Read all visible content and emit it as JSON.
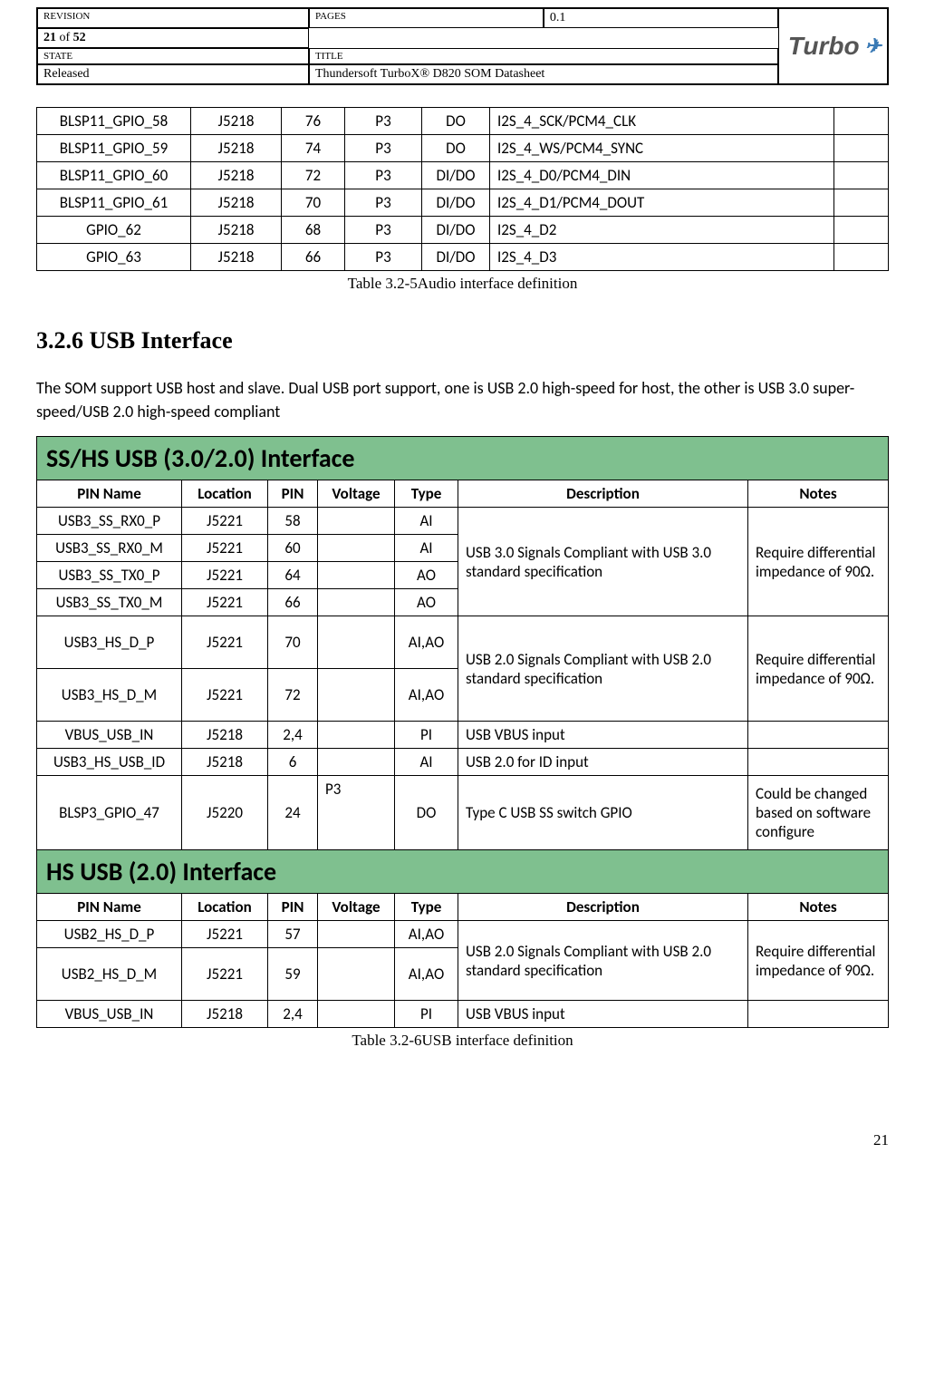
{
  "header": {
    "revision_label": "REVISION",
    "revision_value": "0.1",
    "pages_label": "PAGES",
    "pages_current": "21",
    "pages_sep": " of ",
    "pages_total": "52",
    "state_label": "STATE",
    "state_value": "Released",
    "title_label": "TITLE",
    "title_value": "Thundersoft TurboX® D820 SOM Datasheet",
    "logo_text": "Turbo",
    "logo_glyph": "✈"
  },
  "audio_table": {
    "rows": [
      {
        "name": "BLSP11_GPIO_58",
        "loc": "J5218",
        "pin": "76",
        "volt": "P3",
        "type": "DO",
        "desc": "I2S_4_SCK/PCM4_CLK",
        "notes": ""
      },
      {
        "name": "BLSP11_GPIO_59",
        "loc": "J5218",
        "pin": "74",
        "volt": "P3",
        "type": "DO",
        "desc": "I2S_4_WS/PCM4_SYNC",
        "notes": ""
      },
      {
        "name": "BLSP11_GPIO_60",
        "loc": "J5218",
        "pin": "72",
        "volt": "P3",
        "type": "DI/DO",
        "desc": "I2S_4_D0/PCM4_DIN",
        "notes": ""
      },
      {
        "name": "BLSP11_GPIO_61",
        "loc": "J5218",
        "pin": "70",
        "volt": "P3",
        "type": "DI/DO",
        "desc": "I2S_4_D1/PCM4_DOUT",
        "notes": ""
      },
      {
        "name": "GPIO_62",
        "loc": "J5218",
        "pin": "68",
        "volt": "P3",
        "type": "DI/DO",
        "desc": "I2S_4_D2",
        "notes": ""
      },
      {
        "name": "GPIO_63",
        "loc": "J5218",
        "pin": "66",
        "volt": "P3",
        "type": "DI/DO",
        "desc": "I2S_4_D3",
        "notes": ""
      }
    ],
    "caption": "Table 3.2-5Audio interface definition"
  },
  "section_heading": "3.2.6 USB Interface",
  "section_body": "The SOM support USB host and slave. Dual USB port support, one is USB 2.0 high-speed for host, the other is USB 3.0 super-speed/USB 2.0 high-speed compliant",
  "usb_table": {
    "banner1": "SS/HS USB (3.0/2.0) Interface",
    "banner2": "HS USB (2.0) Interface",
    "head": {
      "pin_name": "PIN Name",
      "location": "Location",
      "pin": "PIN",
      "voltage": "Voltage",
      "type": "Type",
      "description": "Description",
      "notes": "Notes"
    },
    "ss_rows": [
      {
        "name": "USB3_SS_RX0_P",
        "loc": "J5221",
        "pin": "58",
        "volt": "",
        "type": "AI"
      },
      {
        "name": "USB3_SS_RX0_M",
        "loc": "J5221",
        "pin": "60",
        "volt": "",
        "type": "AI"
      },
      {
        "name": "USB3_SS_TX0_P",
        "loc": "J5221",
        "pin": "64",
        "volt": "",
        "type": "AO"
      },
      {
        "name": "USB3_SS_TX0_M",
        "loc": "J5221",
        "pin": "66",
        "volt": "",
        "type": "AO"
      }
    ],
    "ss_desc": "USB 3.0 Signals Compliant with USB 3.0 standard specification",
    "ss_notes": "Require differential impedance of 90Ω.",
    "hs3_rows": [
      {
        "name": "USB3_HS_D_P",
        "loc": "J5221",
        "pin": "70",
        "volt": "",
        "type": "AI,AO"
      },
      {
        "name": "USB3_HS_D_M",
        "loc": "J5221",
        "pin": "72",
        "volt": "",
        "type": "AI,AO"
      }
    ],
    "hs3_desc": "USB 2.0 Signals Compliant with USB 2.0 standard specification",
    "hs3_notes": "Require differential impedance of 90Ω.",
    "misc_rows": [
      {
        "name": "VBUS_USB_IN",
        "loc": "J5218",
        "pin": "2,4",
        "volt": "",
        "type": "PI",
        "desc": "USB VBUS input",
        "notes": ""
      },
      {
        "name": "USB3_HS_USB_ID",
        "loc": "J5218",
        "pin": "6",
        "volt": "",
        "type": "AI",
        "desc": "USB 2.0 for ID input",
        "notes": ""
      },
      {
        "name": "BLSP3_GPIO_47",
        "loc": "J5220",
        "pin": "24",
        "volt": "P3",
        "type": "DO",
        "desc": "Type C USB SS switch GPIO",
        "notes": "Could be changed based on software configure"
      }
    ],
    "hs2_rows": [
      {
        "name": "USB2_HS_D_P",
        "loc": "J5221",
        "pin": "57",
        "volt": "",
        "type": "AI,AO"
      },
      {
        "name": "USB2_HS_D_M",
        "loc": "J5221",
        "pin": "59",
        "volt": "",
        "type": "AI,AO"
      }
    ],
    "hs2_desc": "USB 2.0 Signals Compliant with USB 2.0 standard specification",
    "hs2_notes": "Require differential impedance of 90Ω.",
    "hs2_vbus": {
      "name": "VBUS_USB_IN",
      "loc": "J5218",
      "pin": "2,4",
      "volt": "",
      "type": "PI",
      "desc": "USB VBUS input",
      "notes": ""
    },
    "caption": "Table 3.2-6USB interface definition"
  },
  "page_number": "21",
  "colors": {
    "banner_bg": "#7fc08f",
    "border": "#000000",
    "text": "#000000",
    "bg": "#ffffff"
  }
}
